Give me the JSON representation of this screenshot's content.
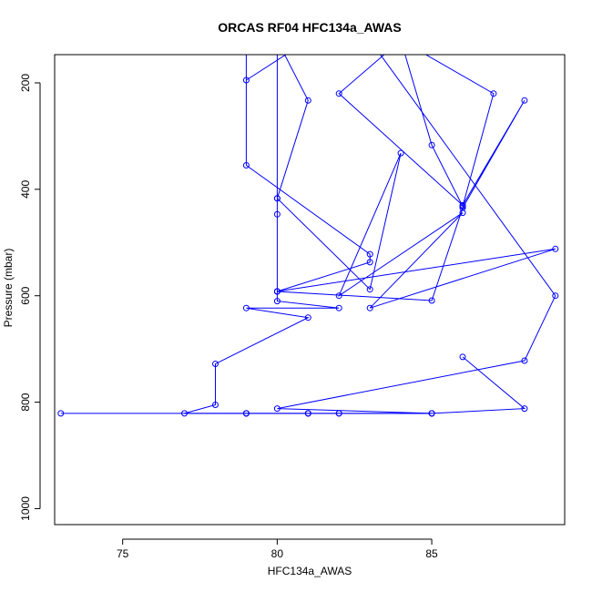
{
  "chart_data": {
    "type": "line",
    "title": "ORCAS RF04 HFC134a_AWAS",
    "xlabel": "HFC134a_AWAS",
    "ylabel": "Pressure (mbar)",
    "xlim": [
      72.8,
      89.3
    ],
    "ylim": [
      1030,
      147
    ],
    "y_reversed": true,
    "x_ticks": [
      75,
      80,
      85
    ],
    "y_ticks": [
      200,
      400,
      600,
      800,
      1000
    ],
    "grid": false,
    "legend": "none",
    "series": [
      {
        "color": "#0000ff",
        "marker": "open-circle",
        "points": [
          {
            "x": 79,
            "y": 120,
            "m": false
          },
          {
            "x": 79,
            "y": 195
          },
          {
            "x": 81,
            "y": 120,
            "m": false
          },
          {
            "x": 81,
            "y": 120,
            "m": false
          },
          {
            "x": 79,
            "y": 120,
            "m": false
          },
          {
            "x": 79,
            "y": 120,
            "m": false
          },
          {
            "x": 79,
            "y": 355
          },
          {
            "x": 83,
            "y": 522
          },
          {
            "x": 83,
            "y": 537
          },
          {
            "x": 80,
            "y": 592
          },
          {
            "x": 89,
            "y": 512
          },
          {
            "x": 83,
            "y": 623
          },
          {
            "x": 86,
            "y": 444
          },
          {
            "x": 82,
            "y": 600
          },
          {
            "x": 84,
            "y": 332
          },
          {
            "x": 83,
            "y": 588
          },
          {
            "x": 80,
            "y": 417
          },
          {
            "x": 80,
            "y": 447
          },
          {
            "x": 80,
            "y": 592
          },
          {
            "x": 85,
            "y": 609
          },
          {
            "x": 86,
            "y": 435
          },
          {
            "x": 88,
            "y": 233
          },
          {
            "x": 86,
            "y": 430
          },
          {
            "x": 82,
            "y": 220
          },
          {
            "x": 84,
            "y": 120,
            "m": false
          },
          {
            "x": 84,
            "y": 120,
            "m": false
          },
          {
            "x": 85,
            "y": 317
          },
          {
            "x": 86,
            "y": 432
          },
          {
            "x": 87,
            "y": 220
          },
          {
            "x": 84,
            "y": 120,
            "m": false
          },
          {
            "x": 84,
            "y": 120,
            "m": false
          },
          {
            "x": 83,
            "y": 120,
            "m": false
          },
          {
            "x": 83,
            "y": 120,
            "m": false
          },
          {
            "x": 89,
            "y": 600
          },
          {
            "x": 88,
            "y": 722
          },
          {
            "x": 80,
            "y": 812
          },
          {
            "x": 85,
            "y": 821
          },
          {
            "x": 81,
            "y": 821
          },
          {
            "x": 79,
            "y": 821
          },
          {
            "x": 77,
            "y": 821
          },
          {
            "x": 78,
            "y": 805
          },
          {
            "x": 78,
            "y": 728
          },
          {
            "x": 81,
            "y": 641
          },
          {
            "x": 79,
            "y": 623
          },
          {
            "x": 82,
            "y": 623
          },
          {
            "x": 80,
            "y": 610
          },
          {
            "x": 80,
            "y": 592
          },
          {
            "x": 80,
            "y": 120,
            "m": false
          },
          {
            "x": 80,
            "y": 120,
            "m": false
          },
          {
            "x": 80,
            "y": 120,
            "m": false
          },
          {
            "x": 80,
            "y": 120,
            "m": false
          },
          {
            "x": 81,
            "y": 233
          },
          {
            "x": 80,
            "y": 417
          }
        ]
      },
      {
        "color": "#0000ff",
        "marker": "open-circle",
        "points": [
          {
            "x": 86,
            "y": 715
          },
          {
            "x": 88,
            "y": 812
          },
          {
            "x": 85,
            "y": 821
          },
          {
            "x": 82,
            "y": 821
          },
          {
            "x": 81,
            "y": 821
          },
          {
            "x": 79,
            "y": 821
          },
          {
            "x": 73,
            "y": 821
          },
          {
            "x": 85,
            "y": 821
          },
          {
            "x": 82,
            "y": 821
          },
          {
            "x": 81,
            "y": 821
          },
          {
            "x": 79,
            "y": 821
          }
        ]
      }
    ]
  }
}
